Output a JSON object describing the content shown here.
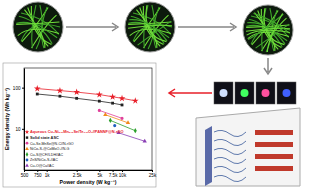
{
  "chart_data": {
    "type": "line",
    "x_label": "Power density (W kg⁻¹)",
    "y_label": "Energy density (Wh kg⁻¹)",
    "log": true,
    "legend": "lower left",
    "xlim": [
      500,
      25000
    ],
    "xticks": [
      500,
      750,
      {
        "value": 1000,
        "label": "1k"
      },
      {
        "value": 2500,
        "label": "2.5k"
      },
      {
        "value": 5000,
        "label": "5k"
      },
      {
        "value": 7500,
        "label": "7.5k"
      },
      {
        "value": 10000,
        "label": "10k"
      },
      {
        "value": 25000,
        "label": "25k"
      }
    ],
    "ylim": [
      1,
      300
    ],
    "yticks": [
      10,
      100
    ],
    "series": [
      {
        "name": "Aqueous Cu₂Ni₀.₅Mn₀.₅Se/Te₁.₅O₂//PANNF@N-rGO",
        "color": "#e8202a",
        "marker": "star",
        "x": [
          750,
          1500,
          2500,
          5000,
          7500,
          10000,
          15000
        ],
        "values": [
          95,
          85,
          78,
          68,
          60,
          55,
          48
        ]
      },
      {
        "name": "Solid state ASC",
        "color": "#222222",
        "marker": "square",
        "x": [
          750,
          1500,
          2500,
          5000,
          7500,
          10000
        ],
        "values": [
          70,
          62,
          55,
          47,
          42,
          38
        ]
      },
      {
        "name": "Cu₂Se-MnSe@N-C//N-rGO",
        "color": "#e0409a",
        "marker": "circle",
        "x": [
          5000,
          10000
        ],
        "values": [
          28,
          18
        ]
      },
      {
        "name": "NiCo₂S₄@CoMoO₄//N-G",
        "color": "#f08a1c",
        "marker": "triangle",
        "x": [
          6000,
          12000
        ],
        "values": [
          22,
          14
        ]
      },
      {
        "name": "Cu₂S@CF//LDH//AC",
        "color": "#2ca02c",
        "marker": "diamond",
        "x": [
          7000,
          15000
        ],
        "values": [
          16,
          9
        ]
      },
      {
        "name": "ZnS/NiCo₂S₄//AC",
        "color": "#1f5fbf",
        "marker": "circle",
        "x": [
          8000
        ],
        "values": [
          12
        ]
      },
      {
        "name": "Cu₂O@Cu//AC",
        "color": "#8a3fb5",
        "marker": "triangle",
        "x": [
          9000,
          20000
        ],
        "values": [
          8,
          5
        ]
      }
    ]
  }
}
